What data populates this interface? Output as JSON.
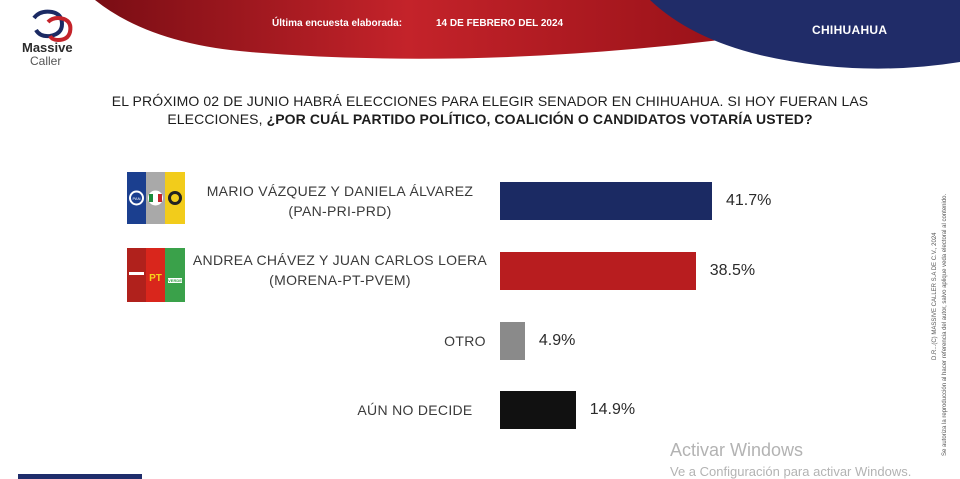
{
  "header": {
    "last_survey_label": "Última encuesta elaborada:",
    "date": "14 DE FEBRERO DEL 2024",
    "region": "CHIHUAHUA"
  },
  "brand": {
    "name_line1": "Massive",
    "name_line2": "Caller"
  },
  "question": {
    "part1": "EL PRÓXIMO 02 DE JUNIO HABRÁ ELECCIONES PARA ELEGIR SENADOR EN CHIHUAHUA. SI HOY FUERAN LAS ELECCIONES, ",
    "part2": "¿POR CUÁL PARTIDO POLÍTICO, COALICIÓN O CANDIDATOS VOTARÍA USTED?"
  },
  "chart_data": {
    "type": "bar",
    "orientation": "horizontal",
    "categories": [
      "MARIO VÁZQUEZ Y DANIELA ÁLVAREZ (PAN-PRI-PRD)",
      "ANDREA CHÁVEZ Y JUAN CARLOS LOERA (MORENA-PT-PVEM)",
      "OTRO",
      "AÚN NO DECIDE"
    ],
    "values": [
      41.7,
      38.5,
      4.9,
      14.9
    ],
    "value_labels": [
      "41.7%",
      "38.5%",
      "4.9%",
      "14.9%"
    ],
    "colors": [
      "#1b2a63",
      "#b81d1f",
      "#8a8a8a",
      "#111111"
    ],
    "xlim": [
      0,
      50
    ],
    "grid": false
  },
  "rows": [
    {
      "line1": "MARIO VÁZQUEZ Y DANIELA ÁLVAREZ",
      "line2": "(PAN-PRI-PRD)",
      "logos": [
        "pan-logo-icon",
        "pri-logo-icon",
        "prd-logo-icon"
      ]
    },
    {
      "line1": "ANDREA CHÁVEZ Y JUAN CARLOS LOERA",
      "line2": "(MORENA-PT-PVEM)",
      "logos": [
        "morena-logo-icon",
        "pt-logo-icon",
        "pvem-logo-icon"
      ]
    },
    {
      "line1": "OTRO",
      "line2": ""
    },
    {
      "line1": "AÚN NO DECIDE",
      "line2": ""
    }
  ],
  "logo_text": {
    "pan": "PAN",
    "pt": "PT",
    "pvem": "VERDE"
  },
  "side_note": {
    "line1": "D.R...(C) MASSIVE CALLER S.A DE C.V., 2024",
    "line2": "Se autoriza la reproducción al hacer referencia del autor, salvo aplique veda electoral al contenido."
  },
  "watermark": {
    "title": "Activar Windows",
    "subtitle": "Ve a Configuración para activar Windows."
  },
  "theme": {
    "red": "#b81d1f",
    "navy": "#1b2a63",
    "gray": "#8a8a8a",
    "black": "#111111"
  }
}
